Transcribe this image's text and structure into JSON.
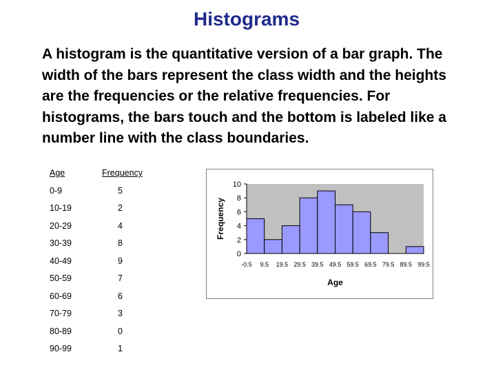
{
  "slide": {
    "title": "Histograms",
    "body": "A histogram is the quantitative version of a bar graph.  The width of the bars represent the class width and the heights are the frequencies or the relative frequencies.  For histograms, the bars touch and the bottom is labeled like a number line with the class boundaries."
  },
  "table": {
    "header_class": "Age",
    "header_freq": "Frequency",
    "rows": [
      {
        "cls": "0-9",
        "freq": "5"
      },
      {
        "cls": "10-19",
        "freq": "2"
      },
      {
        "cls": "20-29",
        "freq": "4"
      },
      {
        "cls": "30-39",
        "freq": "8"
      },
      {
        "cls": "40-49",
        "freq": "9"
      },
      {
        "cls": "50-59",
        "freq": "7"
      },
      {
        "cls": "60-69",
        "freq": "6"
      },
      {
        "cls": "70-79",
        "freq": "3"
      },
      {
        "cls": "80-89",
        "freq": "0"
      },
      {
        "cls": "90-99",
        "freq": "1"
      }
    ]
  },
  "chart_data": {
    "type": "bar",
    "title": "",
    "xlabel": "Age",
    "ylabel": "Frequency",
    "bins": [
      "0-9",
      "10-19",
      "20-29",
      "30-39",
      "40-49",
      "50-59",
      "60-69",
      "70-79",
      "80-89",
      "90-99"
    ],
    "values": [
      5,
      2,
      4,
      8,
      9,
      7,
      6,
      3,
      0,
      1
    ],
    "x_tick_labels": [
      "-0.5",
      "9.5",
      "19.5",
      "29.5",
      "39.5",
      "49.5",
      "59.5",
      "69.5",
      "79.5",
      "89.5",
      "99.5"
    ],
    "y_ticks": [
      0,
      2,
      4,
      6,
      8,
      10
    ],
    "ylim": [
      0,
      10
    ],
    "grid": false,
    "legend": "none",
    "plot_area_color": "#c0c0c0",
    "bar_color": "#9999ff",
    "title_color": "#1f2a8c"
  }
}
